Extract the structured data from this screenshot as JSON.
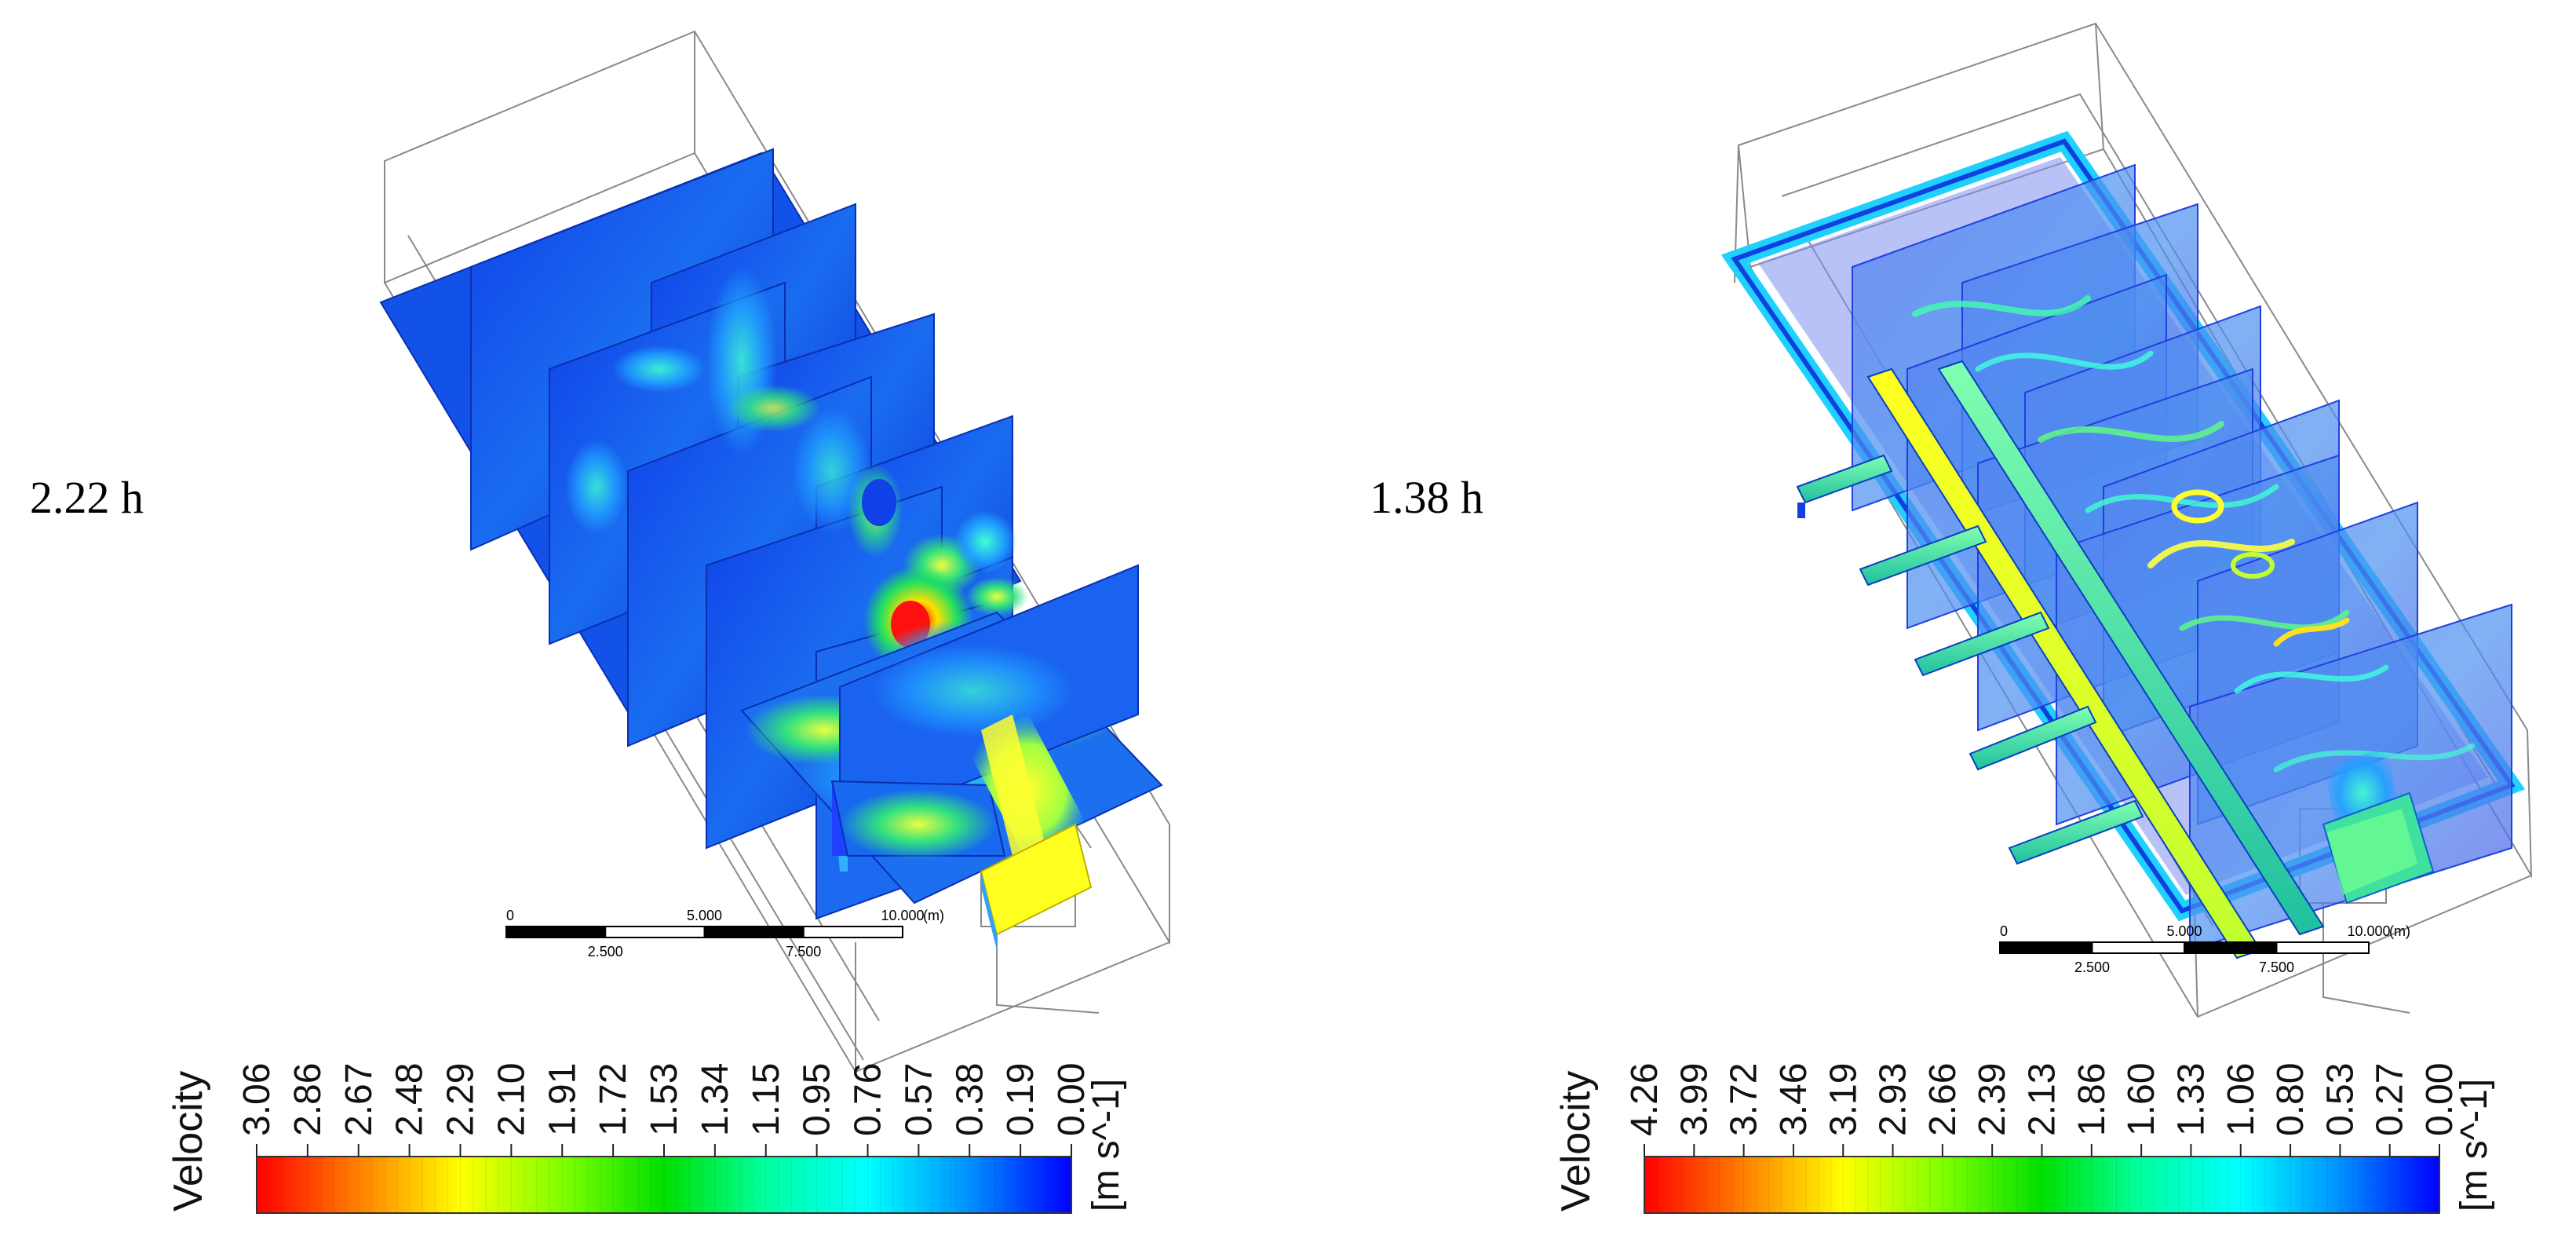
{
  "panels": [
    {
      "id": "left",
      "time_label": "2.22 h",
      "scale_bar": {
        "major": [
          "0",
          "5.000",
          "10.000"
        ],
        "minor": [
          "2.500",
          "7.500"
        ],
        "unit": "(m)"
      },
      "colorbar": {
        "title": "Velocity",
        "unit": "[m s^-1]",
        "ticks": [
          "3.06",
          "2.86",
          "2.67",
          "2.48",
          "2.29",
          "2.10",
          "1.91",
          "1.72",
          "1.53",
          "1.34",
          "1.15",
          "0.95",
          "0.76",
          "0.57",
          "0.38",
          "0.19",
          "0.00"
        ]
      }
    },
    {
      "id": "right",
      "time_label": "1.38 h",
      "scale_bar": {
        "major": [
          "0",
          "5.000",
          "10.000"
        ],
        "minor": [
          "2.500",
          "7.500"
        ],
        "unit": "(m)"
      },
      "colorbar": {
        "title": "Velocity",
        "unit": "[m s^-1]",
        "ticks": [
          "4.26",
          "3.99",
          "3.72",
          "3.46",
          "3.19",
          "2.93",
          "2.66",
          "2.39",
          "2.13",
          "1.86",
          "1.60",
          "1.33",
          "1.06",
          "0.80",
          "0.53",
          "0.27",
          "0.00"
        ]
      }
    }
  ],
  "colormap": [
    "#ff0000",
    "#ff8000",
    "#ffff00",
    "#80ff00",
    "#00e000",
    "#00ffa0",
    "#00ffff",
    "#0090ff",
    "#0000ff"
  ]
}
